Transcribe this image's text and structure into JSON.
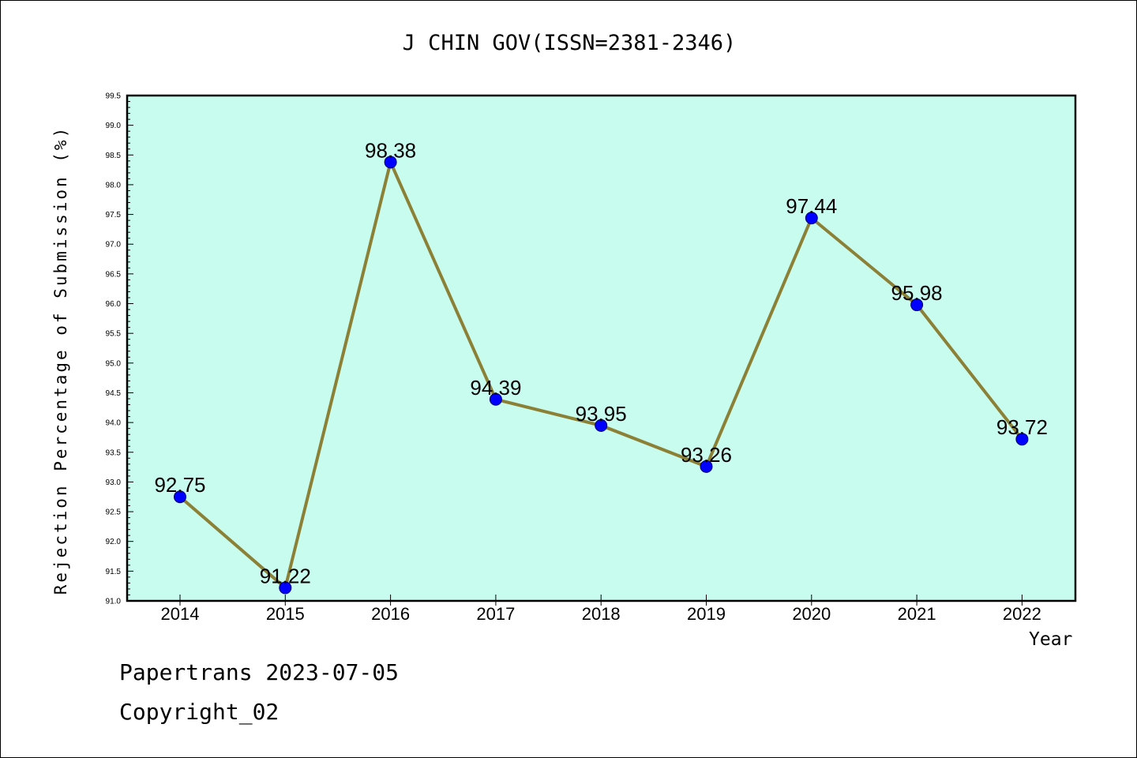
{
  "chart_data": {
    "type": "line",
    "title": "J CHIN GOV(ISSN=2381-2346)",
    "xlabel": "Year",
    "ylabel": "Rejection Percentage of Submission (%)",
    "categories": [
      "2014",
      "2015",
      "2016",
      "2017",
      "2018",
      "2019",
      "2020",
      "2021",
      "2022"
    ],
    "series": [
      {
        "values": [
          92.75,
          91.22,
          98.38,
          94.39,
          93.95,
          93.26,
          97.44,
          95.98,
          93.72
        ],
        "labels": [
          "92.75",
          "91.22",
          "98.38",
          "94.39",
          "93.95",
          "93.26",
          "97.44",
          "95.98",
          "93.72"
        ]
      }
    ],
    "ylim": [
      91.0,
      99.5
    ],
    "yticks": [
      "91.0",
      "91.5",
      "92.0",
      "92.5",
      "93.0",
      "93.5",
      "94.0",
      "94.5",
      "95.0",
      "95.5",
      "96.0",
      "96.5",
      "97.0",
      "97.5",
      "98.0",
      "98.5",
      "99.0",
      "99.5"
    ],
    "grid": false,
    "legend": "none",
    "colors": {
      "plot_background": "#c8fcee",
      "line": "#8b8035",
      "marker": "#0000ff",
      "axis": "#000000"
    }
  },
  "footer": {
    "line1": "Papertrans 2023-07-05",
    "line2": "Copyright_02"
  }
}
